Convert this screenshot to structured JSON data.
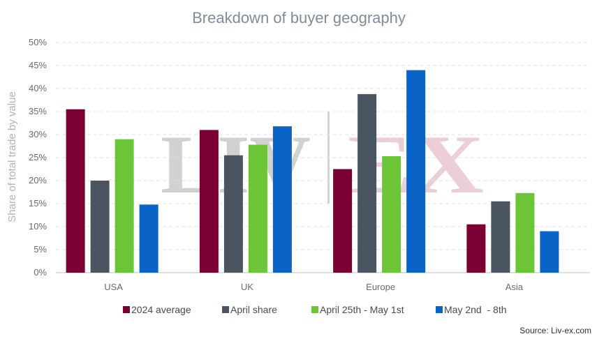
{
  "chart_data": {
    "type": "bar",
    "title": "Breakdown of buyer geography",
    "ylabel": "Share of total trade by value",
    "xlabel": "",
    "ylim": [
      0,
      50
    ],
    "yticks": [
      "0%",
      "5%",
      "10%",
      "15%",
      "20%",
      "25%",
      "30%",
      "35%",
      "40%",
      "45%",
      "50%"
    ],
    "categories": [
      "USA",
      "UK",
      "Europe",
      "Asia"
    ],
    "series": [
      {
        "name": "2024 average",
        "color": "#7a0033",
        "values": [
          35.5,
          31.0,
          22.5,
          10.5
        ]
      },
      {
        "name": "April share",
        "color": "#4a5561",
        "values": [
          20.0,
          25.5,
          38.8,
          15.5
        ]
      },
      {
        "name": "April 25th - May 1st",
        "color": "#6cc537",
        "values": [
          29.0,
          27.8,
          25.3,
          17.3
        ]
      },
      {
        "name": "May 2nd  - 8th",
        "color": "#0a64c8",
        "values": [
          14.8,
          31.8,
          44.0,
          9.0
        ]
      }
    ],
    "grid": true,
    "legend_position": "bottom",
    "source": "Source: Liv-ex.com",
    "watermark": "LIV-EX"
  }
}
